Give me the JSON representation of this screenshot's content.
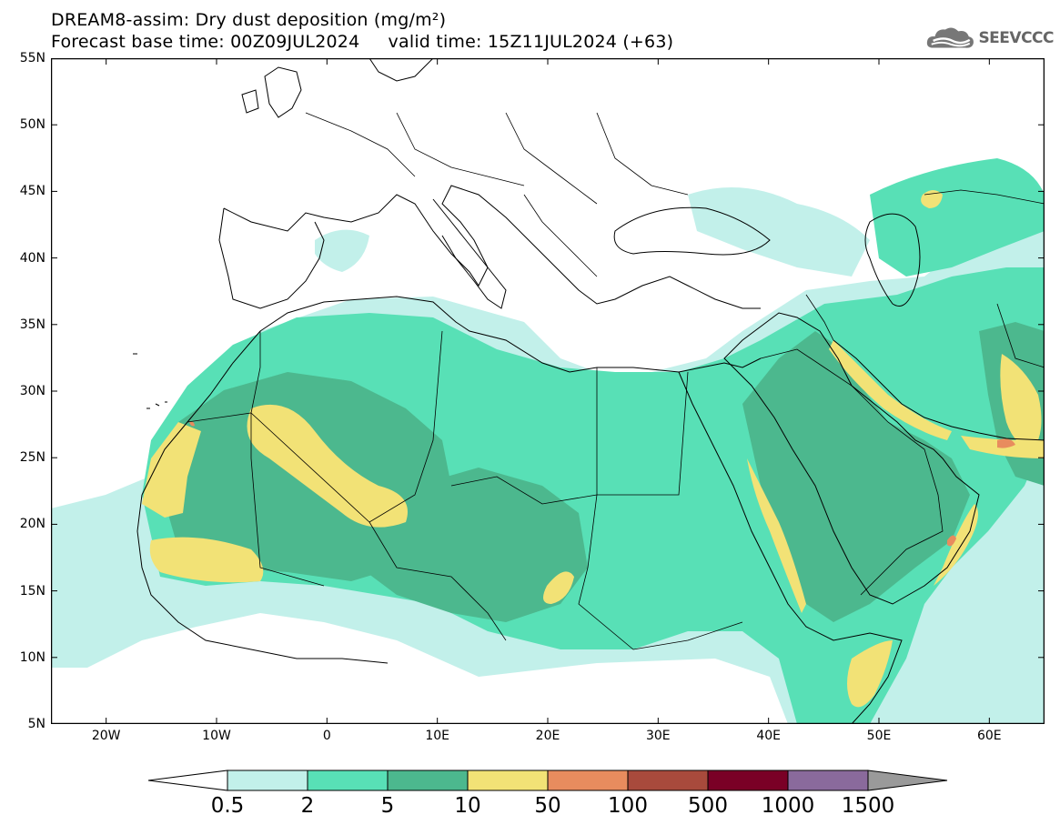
{
  "header": {
    "title_line1": "DREAM8-assim: Dry dust deposition (mg/m²)",
    "title_line2": "Forecast base time: 00Z09JUL2024     valid time: 15Z11JUL2024 (+63)",
    "logo_text": "SEEVCCC"
  },
  "map": {
    "lat_labels": [
      "55N",
      "50N",
      "45N",
      "40N",
      "35N",
      "30N",
      "25N",
      "20N",
      "15N",
      "10N",
      "5N"
    ],
    "lon_labels": [
      "20W",
      "10W",
      "0",
      "10E",
      "20E",
      "30E",
      "40E",
      "50E",
      "60E"
    ],
    "lon_range": [
      -25,
      65
    ],
    "lat_range": [
      5,
      55
    ],
    "border_color": "#000000"
  },
  "legend": {
    "levels": [
      "0.5",
      "2",
      "5",
      "10",
      "50",
      "100",
      "500",
      "1000",
      "1500"
    ],
    "colors": [
      "#c2f0ea",
      "#58e0b6",
      "#4cb88e",
      "#f2e276",
      "#e88c5e",
      "#a84a3c",
      "#7a0026",
      "#8a6a9c",
      "#9a9a9a"
    ],
    "under_color": "#ffffff"
  }
}
